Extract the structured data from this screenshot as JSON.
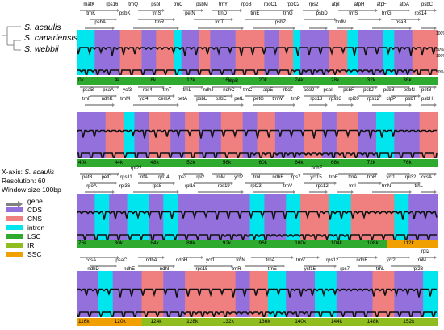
{
  "species": [
    "S. acaulis",
    "S. canariensis",
    "S. webbii"
  ],
  "info": {
    "xaxis_prefix": "X-axis:",
    "xaxis_species": "S. acaulis",
    "resolution": "Resolution: 60",
    "window": "Window size 100bp"
  },
  "legend": [
    {
      "label": "gene",
      "color": "#808080",
      "icon": "arrow-icon"
    },
    {
      "label": "CDS",
      "color": "#9370db",
      "icon": "swatch"
    },
    {
      "label": "CNS",
      "color": "#f08080",
      "icon": "swatch"
    },
    {
      "label": "intron",
      "color": "#00e5ee",
      "icon": "swatch"
    },
    {
      "label": "LSC",
      "color": "#2eaa2e",
      "icon": "swatch"
    },
    {
      "label": "IR",
      "color": "#8fbc1f",
      "icon": "swatch"
    },
    {
      "label": "SSC",
      "color": "#f0a000",
      "icon": "swatch"
    }
  ],
  "colors": {
    "CDS": "#9370db",
    "CNS": "#f08080",
    "intron": "#00e5ee",
    "LSC": "#2eaa2e",
    "IR": "#8fbc1f",
    "SSC": "#f0a000",
    "light_cyan": "#b0f0f8",
    "pink": "#ff9ec4"
  },
  "percent_labels": [
    "100%",
    "50%",
    "100%",
    "50%"
  ],
  "panels": [
    {
      "genes_top": [
        "matK",
        "rps16",
        "trnQ",
        "psbI",
        "trnC",
        "psbM",
        "trnY",
        "rpoB",
        "rpoC1",
        "rpoC2",
        "rps2",
        "atpI",
        "atpH",
        "atpF",
        "atpA",
        "psbC"
      ],
      "genes_mid": [
        "trnK",
        "psbK",
        "trnS",
        "petN",
        "trnD",
        "trnE",
        "trnG",
        "psbD",
        "trnS",
        "trnG",
        "rps14"
      ],
      "genes_bot": [
        "psbA",
        "trnR",
        "trnT",
        "psbZ",
        "trnfM",
        "psaB"
      ],
      "ticks": [
        "0k",
        "4k",
        "8k",
        "12k",
        "16k",
        "20k",
        "24k",
        "28k",
        "32k",
        "36k"
      ]
    },
    {
      "genes_top": [
        "atpB"
      ],
      "genes_mid": [
        "psaB",
        "psaA",
        "ycf3",
        "rps4",
        "trnT",
        "trnL",
        "ndhJ",
        "ndhC",
        "trnC",
        "atpE",
        "rbcL",
        "accD",
        "psaI",
        "psbF",
        "psbJ",
        "psbB",
        "psbN",
        "petB"
      ],
      "genes_bot": [
        "trnF",
        "ndhK",
        "trnM",
        "ycf4",
        "cemA",
        "petA",
        "psbL",
        "psbE",
        "petL",
        "petG",
        "trnW",
        "trnP",
        "rps18",
        "rps33",
        "rpl20",
        "rps12",
        "clpP",
        "psbT",
        "psbH"
      ],
      "ticks": [
        "40k",
        "44k",
        "48k",
        "52k",
        "56k",
        "60k",
        "64k",
        "68k",
        "72k",
        "76k"
      ]
    },
    {
      "genes_top": [
        "rpl22",
        "ndhF"
      ],
      "genes_mid": [
        "petB",
        "petD",
        "rps11",
        "infA",
        "rpl14",
        "rps3",
        "rpl2",
        "trnM",
        "ycf2",
        "trnL",
        "ndhB",
        "rps7",
        "ycf15",
        "trnE",
        "trnA",
        "trnR",
        "ycf1",
        "rpl32",
        "ccsA"
      ],
      "genes_bot": [
        "rpoA",
        "rpl36",
        "rps8",
        "rpl16",
        "rps19",
        "rpl23",
        "trnV",
        "rps12",
        "trnI",
        "trnN",
        "trnL"
      ],
      "ticks": [
        "76k",
        "80k",
        "84k",
        "88k",
        "92k",
        "96k",
        "100k",
        "104k",
        "108k",
        "112k"
      ]
    },
    {
      "genes_top": [
        "rpl2"
      ],
      "genes_mid": [
        "ccsA",
        "psaC",
        "ndhA",
        "ndhH",
        "ycf1",
        "trnN",
        "trnA",
        "trnV",
        "rps12",
        "ndhB",
        "ycf2",
        "trnM"
      ],
      "genes_bot": [
        "ndhD",
        "ndhE",
        "ndhI",
        "rps15",
        "trnR",
        "trnE",
        "ycf15",
        "rps7",
        "trnL",
        "rpl23"
      ],
      "ticks": [
        "116k",
        "120k",
        "124k",
        "128k",
        "132k",
        "136k",
        "140k",
        "144k",
        "148k",
        "152k"
      ]
    }
  ]
}
